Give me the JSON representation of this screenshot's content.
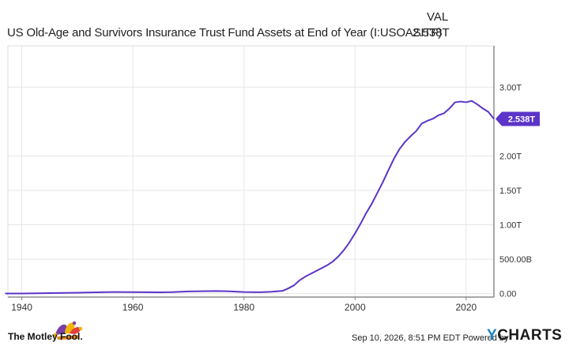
{
  "header": {
    "title": "US Old-Age and Survivors Insurance Trust Fund Assets at End of Year (I:USOASITF)",
    "column_heading": "VAL",
    "current_value": "2.538T"
  },
  "footer": {
    "brand": "The Motley Fool.",
    "timestamp": "Sep 10, 2026, 8:51 PM EDT",
    "powered_by": "Powered by",
    "provider_y": "Y",
    "provider_rest": "CHARTS"
  },
  "colors": {
    "line": "#5b34c9",
    "grid": "#e6e6e6",
    "axis": "#555555"
  },
  "chart_data": {
    "type": "line",
    "title": "US Old-Age and Survivors Insurance Trust Fund Assets at End of Year (I:USOASITF)",
    "xlabel": "",
    "ylabel": "",
    "x_ticks": [
      1940,
      1960,
      1980,
      2000,
      2020
    ],
    "y_ticks": [
      {
        "value": 0,
        "label": "0.00"
      },
      {
        "value": 0.5,
        "label": "500.00B"
      },
      {
        "value": 1.0,
        "label": "1.00T"
      },
      {
        "value": 1.5,
        "label": "1.50T"
      },
      {
        "value": 2.0,
        "label": "2.00T"
      },
      {
        "value": 3.0,
        "label": "3.00T"
      }
    ],
    "xlim": [
      1937.5,
      2025
    ],
    "ylim": [
      -0.05,
      3.6
    ],
    "grid": true,
    "last_value_label": "2.538T",
    "series": [
      {
        "units": "trillions USD",
        "points": [
          [
            1937,
            0.001
          ],
          [
            1940,
            0.002
          ],
          [
            1945,
            0.007
          ],
          [
            1950,
            0.013
          ],
          [
            1955,
            0.021
          ],
          [
            1957,
            0.023
          ],
          [
            1960,
            0.021
          ],
          [
            1965,
            0.019
          ],
          [
            1967,
            0.022
          ],
          [
            1970,
            0.032
          ],
          [
            1975,
            0.037
          ],
          [
            1977,
            0.035
          ],
          [
            1980,
            0.023
          ],
          [
            1983,
            0.02
          ],
          [
            1985,
            0.027
          ],
          [
            1987,
            0.041
          ],
          [
            1988,
            0.077
          ],
          [
            1989,
            0.12
          ],
          [
            1990,
            0.193
          ],
          [
            1991,
            0.245
          ],
          [
            1992,
            0.287
          ],
          [
            1993,
            0.329
          ],
          [
            1994,
            0.37
          ],
          [
            1995,
            0.413
          ],
          [
            1996,
            0.467
          ],
          [
            1997,
            0.541
          ],
          [
            1998,
            0.634
          ],
          [
            1999,
            0.746
          ],
          [
            2000,
            0.876
          ],
          [
            2001,
            1.017
          ],
          [
            2002,
            1.17
          ],
          [
            2003,
            1.305
          ],
          [
            2004,
            1.462
          ],
          [
            2005,
            1.619
          ],
          [
            2006,
            1.793
          ],
          [
            2007,
            1.96
          ],
          [
            2008,
            2.1
          ],
          [
            2009,
            2.205
          ],
          [
            2010,
            2.287
          ],
          [
            2011,
            2.361
          ],
          [
            2012,
            2.47
          ],
          [
            2013,
            2.51
          ],
          [
            2014,
            2.54
          ],
          [
            2015,
            2.59
          ],
          [
            2016,
            2.62
          ],
          [
            2017,
            2.69
          ],
          [
            2018,
            2.78
          ],
          [
            2019,
            2.79
          ],
          [
            2020,
            2.78
          ],
          [
            2021,
            2.8
          ],
          [
            2022,
            2.75
          ],
          [
            2023,
            2.69
          ],
          [
            2024,
            2.64
          ],
          [
            2025,
            2.538
          ]
        ]
      }
    ]
  }
}
